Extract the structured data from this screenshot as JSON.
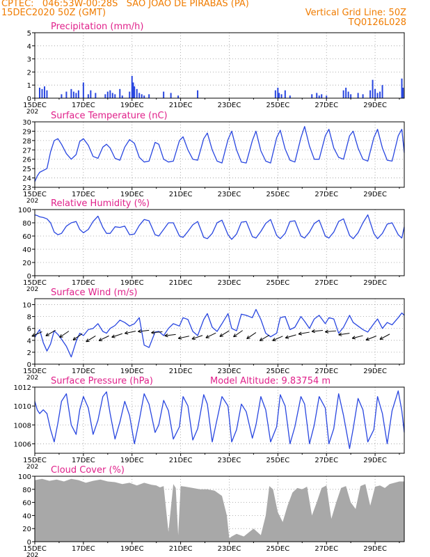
{
  "header": {
    "line1": "CPTEC:   046:53W-00:28S   SAO JOAO DE PIRABAS (PA)",
    "line2_left": "15DEC2020 50Z (GMT)",
    "line2_right": "Vertical Grid Line: 50Z",
    "line3_right": "TQ0126L028"
  },
  "colors": {
    "header": "#f07c00",
    "title": "#e0208a",
    "series": "#2846e0",
    "cloud": "#a8a8a8",
    "wind_arrow": "#000000",
    "frame": "#000000",
    "grid": "#999999"
  },
  "x_axis": {
    "tick_labels": [
      "15DEC",
      "17DEC",
      "19DEC",
      "21DEC",
      "23DEC",
      "25DEC",
      "27DEC",
      "29DEC"
    ],
    "tick_days": [
      0,
      2,
      4,
      6,
      8,
      10,
      12,
      14
    ],
    "day_range": [
      0,
      15.2
    ],
    "year_stub": "202"
  },
  "chart_data": [
    {
      "type": "bar",
      "title": "Precipitation (mm/h)",
      "ylim": [
        0,
        5
      ],
      "yticks": [
        0,
        1,
        2,
        3,
        4,
        5
      ],
      "x_unit": "days since 15DEC2020 00Z",
      "x": [
        0.2,
        0.3,
        0.4,
        0.5,
        1.1,
        1.3,
        1.5,
        1.6,
        1.7,
        1.8,
        2.0,
        2.2,
        2.3,
        2.5,
        2.9,
        3.0,
        3.1,
        3.2,
        3.3,
        3.5,
        3.6,
        3.9,
        4.0,
        4.05,
        4.1,
        4.2,
        4.3,
        4.4,
        4.5,
        4.7,
        5.3,
        5.6,
        5.9,
        6.7,
        9.9,
        10.0,
        10.05,
        10.15,
        10.3,
        10.5,
        11.4,
        11.6,
        11.7,
        11.8,
        12.0,
        12.7,
        12.8,
        12.9,
        13.0,
        13.3,
        13.5,
        13.8,
        13.9,
        14.0,
        14.1,
        14.2,
        14.3,
        15.1,
        15.15
      ],
      "values": [
        0.8,
        0.7,
        0.9,
        0.6,
        0.3,
        0.5,
        0.7,
        0.5,
        0.4,
        0.6,
        1.2,
        0.3,
        0.6,
        0.4,
        0.3,
        0.5,
        0.6,
        0.4,
        0.3,
        0.7,
        0.2,
        0.5,
        1.7,
        1.2,
        0.9,
        0.7,
        0.4,
        0.3,
        0.2,
        0.3,
        0.5,
        0.4,
        0.2,
        0.6,
        0.6,
        0.8,
        0.4,
        0.3,
        0.6,
        0.2,
        0.3,
        0.4,
        0.2,
        0.3,
        0.2,
        0.6,
        0.8,
        0.5,
        0.3,
        0.4,
        0.3,
        0.6,
        1.4,
        0.7,
        0.4,
        0.5,
        1.0,
        1.5,
        0.8
      ]
    },
    {
      "type": "line",
      "title": "Surface Temperature (nC)",
      "ylim": [
        23,
        30
      ],
      "yticks": [
        23,
        24,
        25,
        26,
        27,
        28,
        29,
        30
      ],
      "x_unit": "days since 15DEC2020 00Z",
      "x": [
        0.0,
        0.1,
        0.2,
        0.35,
        0.5,
        0.65,
        0.8,
        0.95,
        1.1,
        1.3,
        1.5,
        1.7,
        1.85,
        2.0,
        2.2,
        2.4,
        2.6,
        2.8,
        2.95,
        3.1,
        3.3,
        3.5,
        3.7,
        3.9,
        4.1,
        4.3,
        4.5,
        4.7,
        4.95,
        5.1,
        5.3,
        5.5,
        5.7,
        5.95,
        6.1,
        6.3,
        6.5,
        6.7,
        6.95,
        7.1,
        7.3,
        7.5,
        7.7,
        7.95,
        8.1,
        8.3,
        8.5,
        8.7,
        8.95,
        9.1,
        9.3,
        9.5,
        9.7,
        9.95,
        10.1,
        10.3,
        10.5,
        10.7,
        10.95,
        11.1,
        11.3,
        11.5,
        11.7,
        11.95,
        12.1,
        12.3,
        12.5,
        12.7,
        12.95,
        13.1,
        13.3,
        13.5,
        13.7,
        13.95,
        14.1,
        14.3,
        14.5,
        14.7,
        14.95,
        15.1,
        15.2
      ],
      "values": [
        23.6,
        24.2,
        24.6,
        24.8,
        25.0,
        26.8,
        28.0,
        28.2,
        27.6,
        26.6,
        26.0,
        26.5,
        27.9,
        28.2,
        27.5,
        26.3,
        26.1,
        27.3,
        27.6,
        27.2,
        26.1,
        25.9,
        27.3,
        28.1,
        27.7,
        26.2,
        25.7,
        25.8,
        27.8,
        27.6,
        26.0,
        25.7,
        25.8,
        28.0,
        28.4,
        27.0,
        26.0,
        25.9,
        28.2,
        28.8,
        27.0,
        25.8,
        25.6,
        28.1,
        29.0,
        27.0,
        25.7,
        25.6,
        28.0,
        29.0,
        26.9,
        25.8,
        25.6,
        28.3,
        29.1,
        27.1,
        25.9,
        25.7,
        28.3,
        29.5,
        27.4,
        26.0,
        26.0,
        28.5,
        29.2,
        27.2,
        26.2,
        26.0,
        28.5,
        29.0,
        27.2,
        26.0,
        25.8,
        28.3,
        29.2,
        27.2,
        25.9,
        25.8,
        28.5,
        29.2,
        26.7
      ]
    },
    {
      "type": "line",
      "title": "Relative Humidity (%)",
      "ylim": [
        0,
        100
      ],
      "yticks": [
        0,
        20,
        40,
        60,
        80,
        100
      ],
      "x_unit": "days since 15DEC2020 00Z",
      "x": [
        0.0,
        0.1,
        0.2,
        0.35,
        0.5,
        0.65,
        0.8,
        0.95,
        1.1,
        1.3,
        1.5,
        1.7,
        1.85,
        2.0,
        2.2,
        2.4,
        2.6,
        2.8,
        2.95,
        3.1,
        3.3,
        3.5,
        3.7,
        3.9,
        4.1,
        4.3,
        4.5,
        4.7,
        4.95,
        5.1,
        5.3,
        5.5,
        5.7,
        5.95,
        6.1,
        6.3,
        6.5,
        6.7,
        6.95,
        7.1,
        7.3,
        7.5,
        7.7,
        7.95,
        8.1,
        8.3,
        8.5,
        8.7,
        8.95,
        9.1,
        9.3,
        9.5,
        9.7,
        9.95,
        10.1,
        10.3,
        10.5,
        10.7,
        10.95,
        11.1,
        11.3,
        11.5,
        11.7,
        11.95,
        12.1,
        12.3,
        12.5,
        12.7,
        12.95,
        13.1,
        13.3,
        13.5,
        13.7,
        13.95,
        14.1,
        14.3,
        14.5,
        14.7,
        14.95,
        15.1,
        15.2
      ],
      "values": [
        92,
        91,
        89,
        88,
        86,
        80,
        66,
        62,
        64,
        75,
        80,
        82,
        70,
        65,
        70,
        82,
        90,
        73,
        64,
        64,
        74,
        73,
        75,
        62,
        63,
        76,
        85,
        83,
        62,
        60,
        70,
        80,
        80,
        60,
        58,
        67,
        77,
        82,
        58,
        56,
        64,
        80,
        84,
        62,
        55,
        63,
        81,
        82,
        59,
        57,
        67,
        79,
        85,
        61,
        56,
        64,
        82,
        83,
        60,
        57,
        66,
        79,
        84,
        60,
        57,
        66,
        82,
        86,
        61,
        56,
        65,
        80,
        92,
        64,
        56,
        64,
        78,
        80,
        62,
        57,
        74
      ]
    },
    {
      "type": "line",
      "title": "Surface Wind (m/s)",
      "ylim": [
        0,
        11
      ],
      "yticks": [
        0,
        2,
        4,
        6,
        8,
        10
      ],
      "x_unit": "days since 15DEC2020 00Z",
      "x": [
        0.0,
        0.1,
        0.2,
        0.35,
        0.5,
        0.65,
        0.8,
        0.95,
        1.1,
        1.3,
        1.5,
        1.7,
        1.85,
        2.0,
        2.2,
        2.4,
        2.6,
        2.8,
        2.95,
        3.1,
        3.3,
        3.5,
        3.7,
        3.9,
        4.1,
        4.3,
        4.5,
        4.7,
        4.95,
        5.1,
        5.3,
        5.5,
        5.7,
        5.95,
        6.1,
        6.3,
        6.5,
        6.7,
        6.95,
        7.1,
        7.3,
        7.5,
        7.7,
        7.95,
        8.1,
        8.3,
        8.5,
        8.7,
        8.95,
        9.1,
        9.3,
        9.5,
        9.7,
        9.95,
        10.1,
        10.3,
        10.5,
        10.7,
        10.95,
        11.1,
        11.3,
        11.5,
        11.7,
        11.95,
        12.1,
        12.3,
        12.5,
        12.7,
        12.95,
        13.1,
        13.3,
        13.5,
        13.7,
        13.95,
        14.1,
        14.3,
        14.5,
        14.7,
        14.95,
        15.1,
        15.2
      ],
      "values": [
        4.5,
        5.2,
        5.8,
        3.6,
        2.2,
        3.4,
        5.6,
        5.0,
        4.2,
        3.0,
        1.2,
        3.8,
        5.2,
        4.8,
        5.8,
        6.0,
        6.8,
        5.5,
        5.2,
        6.0,
        6.5,
        7.4,
        7.0,
        6.4,
        6.8,
        7.8,
        3.2,
        2.8,
        5.4,
        5.5,
        4.8,
        6.0,
        6.8,
        6.4,
        7.8,
        7.5,
        5.5,
        4.8,
        7.5,
        8.5,
        6.2,
        5.5,
        6.8,
        8.5,
        6.0,
        5.6,
        8.4,
        8.2,
        7.8,
        9.2,
        7.5,
        5.2,
        4.6,
        5.2,
        7.8,
        8.0,
        5.8,
        6.2,
        8.0,
        7.2,
        6.0,
        7.6,
        8.2,
        6.8,
        7.8,
        7.6,
        5.2,
        6.2,
        8.2,
        7.0,
        6.4,
        5.8,
        5.4,
        6.8,
        7.6,
        6.0,
        7.0,
        6.6,
        7.8,
        8.6,
        8.2
      ]
    },
    {
      "type": "line",
      "title": "Surface Pressure (hPa)",
      "annotation": "Model Altitude: 9.83754 m",
      "ylim": [
        1005,
        1012
      ],
      "yticks": [
        1006,
        1008,
        1010,
        1012
      ],
      "x_unit": "days since 15DEC2020 00Z",
      "x": [
        0.0,
        0.1,
        0.2,
        0.35,
        0.5,
        0.65,
        0.8,
        0.95,
        1.1,
        1.3,
        1.5,
        1.7,
        1.85,
        2.0,
        2.2,
        2.4,
        2.6,
        2.8,
        2.95,
        3.1,
        3.3,
        3.5,
        3.7,
        3.9,
        4.1,
        4.3,
        4.5,
        4.7,
        4.95,
        5.1,
        5.3,
        5.5,
        5.7,
        5.95,
        6.1,
        6.3,
        6.5,
        6.7,
        6.95,
        7.1,
        7.3,
        7.5,
        7.7,
        7.95,
        8.1,
        8.3,
        8.5,
        8.7,
        8.95,
        9.1,
        9.3,
        9.5,
        9.7,
        9.95,
        10.1,
        10.3,
        10.5,
        10.7,
        10.95,
        11.1,
        11.3,
        11.5,
        11.7,
        11.95,
        12.1,
        12.3,
        12.5,
        12.7,
        12.95,
        13.1,
        13.3,
        13.5,
        13.7,
        13.95,
        14.1,
        14.3,
        14.5,
        14.7,
        14.95,
        15.1,
        15.2
      ],
      "values": [
        1010.5,
        1009.6,
        1009.2,
        1009.6,
        1009.2,
        1007.5,
        1006.2,
        1008.2,
        1010.5,
        1011.3,
        1008.0,
        1007.0,
        1009.6,
        1011.0,
        1009.8,
        1007.0,
        1008.5,
        1011.0,
        1011.5,
        1009.2,
        1006.5,
        1008.3,
        1010.5,
        1009.0,
        1006.0,
        1008.5,
        1011.3,
        1010.2,
        1007.2,
        1008.0,
        1010.6,
        1009.5,
        1006.5,
        1007.8,
        1011.0,
        1010.0,
        1006.4,
        1007.6,
        1011.2,
        1010.2,
        1006.2,
        1008.6,
        1011.0,
        1010.0,
        1006.2,
        1007.5,
        1010.2,
        1009.4,
        1006.6,
        1008.0,
        1011.0,
        1009.6,
        1006.2,
        1007.8,
        1011.2,
        1010.0,
        1006.0,
        1007.8,
        1011.0,
        1010.2,
        1006.0,
        1008.0,
        1011.0,
        1009.8,
        1006.0,
        1007.6,
        1011.3,
        1009.0,
        1005.5,
        1007.6,
        1010.8,
        1009.6,
        1006.2,
        1007.5,
        1011.0,
        1009.2,
        1006.0,
        1009.5,
        1011.6,
        1009.5,
        1007.2
      ]
    },
    {
      "type": "area",
      "title": "Cloud Cover (%)",
      "ylim": [
        0,
        100
      ],
      "yticks": [
        0,
        20,
        40,
        60,
        80,
        100
      ],
      "x_unit": "days since 15DEC2020 00Z",
      "x": [
        0.0,
        0.3,
        0.6,
        0.9,
        1.2,
        1.5,
        1.8,
        2.1,
        2.4,
        2.7,
        3.0,
        3.3,
        3.6,
        3.9,
        4.2,
        4.5,
        4.8,
        5.0,
        5.15,
        5.3,
        5.5,
        5.7,
        5.8,
        5.9,
        6.0,
        6.2,
        6.5,
        6.8,
        7.1,
        7.4,
        7.7,
        7.9,
        8.0,
        8.1,
        8.3,
        8.6,
        9.0,
        9.3,
        9.5,
        9.65,
        9.8,
        10.0,
        10.2,
        10.4,
        10.6,
        10.8,
        11.0,
        11.2,
        11.4,
        11.6,
        11.8,
        12.0,
        12.2,
        12.4,
        12.6,
        12.8,
        13.0,
        13.2,
        13.4,
        13.6,
        13.8,
        14.0,
        14.2,
        14.4,
        14.6,
        14.8,
        15.0,
        15.2
      ],
      "values": [
        94,
        96,
        93,
        95,
        92,
        96,
        94,
        90,
        93,
        95,
        92,
        91,
        88,
        90,
        86,
        90,
        87,
        86,
        83,
        85,
        15,
        88,
        82,
        10,
        85,
        84,
        82,
        80,
        80,
        78,
        70,
        40,
        5,
        8,
        12,
        8,
        20,
        10,
        40,
        85,
        80,
        45,
        30,
        55,
        75,
        82,
        80,
        84,
        40,
        60,
        82,
        86,
        35,
        60,
        82,
        85,
        60,
        50,
        85,
        88,
        55,
        84,
        86,
        82,
        88,
        90,
        92,
        92
      ]
    }
  ]
}
